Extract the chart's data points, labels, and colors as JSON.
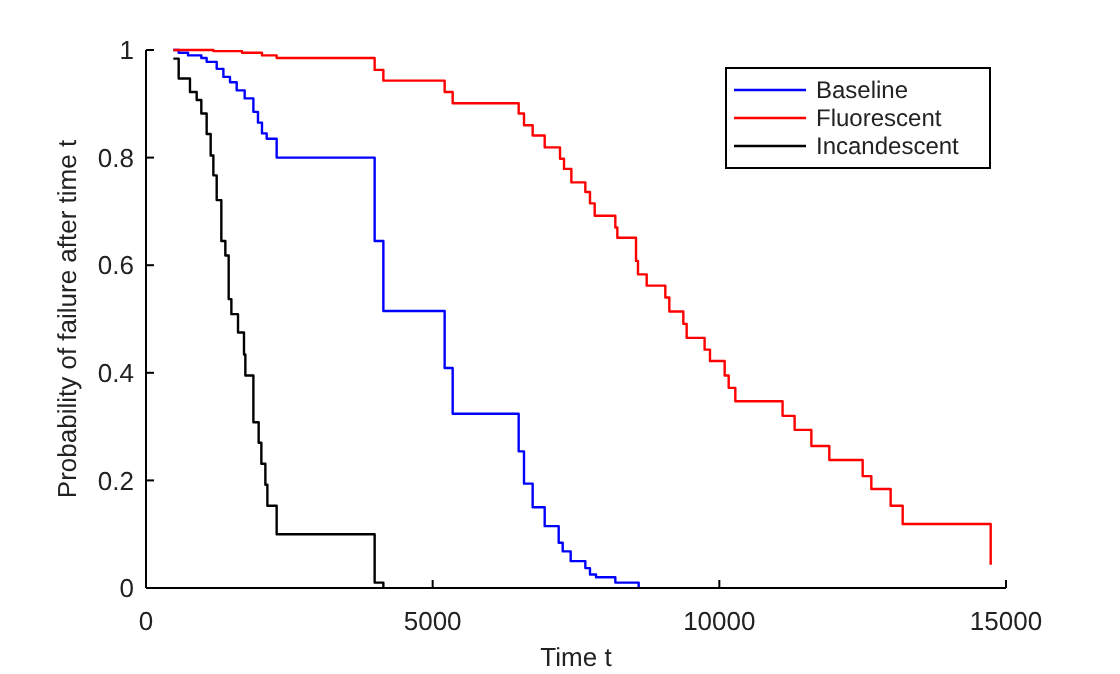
{
  "chart_data": {
    "type": "step",
    "xlabel": "Time t",
    "ylabel": "Probability of failure after time t",
    "xlim": [
      0,
      15000
    ],
    "ylim": [
      0,
      1
    ],
    "xticks": [
      0,
      5000,
      10000,
      15000
    ],
    "yticks": [
      0,
      0.2,
      0.4,
      0.6,
      0.8,
      1
    ],
    "grid": false,
    "legend": "top right",
    "line_style": "solid",
    "marker": "none",
    "series": [
      {
        "name": "Baseline",
        "color": "#0000ff",
        "x": [
          477,
          570,
          733,
          965,
          1058,
          1233,
          1350,
          1465,
          1582,
          1721,
          1873,
          1953,
          2023,
          2105,
          2279,
          3988,
          4140,
          5209,
          5349,
          6500,
          6593,
          6744,
          6954,
          7198,
          7268,
          7407,
          7663,
          7744,
          7849,
          8186,
          8593
        ],
        "values": [
          1,
          0.995,
          0.99,
          0.985,
          0.978,
          0.965,
          0.95,
          0.94,
          0.925,
          0.91,
          0.885,
          0.865,
          0.845,
          0.835,
          0.8,
          0.645,
          0.515,
          0.409,
          0.324,
          0.254,
          0.194,
          0.15,
          0.115,
          0.084,
          0.068,
          0.05,
          0.037,
          0.025,
          0.02,
          0.01,
          0
        ]
      },
      {
        "name": "Fluorescent",
        "color": "#ff0000",
        "x": [
          477,
          1175,
          1675,
          2023,
          2279,
          3988,
          4140,
          5209,
          5349,
          6500,
          6593,
          6744,
          6954,
          7221,
          7291,
          7419,
          7663,
          7744,
          7826,
          8186,
          8221,
          8547,
          8581,
          8733,
          9058,
          9128,
          9372,
          9430,
          9743,
          9837,
          10093,
          10163,
          10279,
          11103,
          11313,
          11605,
          11918,
          12500,
          12651,
          12988,
          13198,
          14733
        ],
        "values": [
          1,
          0.998,
          0.995,
          0.99,
          0.985,
          0.963,
          0.943,
          0.922,
          0.901,
          0.882,
          0.86,
          0.841,
          0.819,
          0.798,
          0.779,
          0.754,
          0.736,
          0.715,
          0.692,
          0.67,
          0.651,
          0.608,
          0.583,
          0.562,
          0.54,
          0.514,
          0.491,
          0.465,
          0.443,
          0.422,
          0.395,
          0.372,
          0.347,
          0.32,
          0.294,
          0.264,
          0.238,
          0.208,
          0.184,
          0.153,
          0.119,
          0.043
        ]
      },
      {
        "name": "Incandescent",
        "color": "#000000",
        "x": [
          477,
          570,
          767,
          884,
          965,
          1058,
          1128,
          1175,
          1233,
          1314,
          1384,
          1442,
          1489,
          1605,
          1709,
          1733,
          1873,
          1965,
          2012,
          2082,
          2117,
          2279,
          3988,
          4140
        ],
        "values": [
          0.984,
          0.947,
          0.922,
          0.907,
          0.882,
          0.844,
          0.804,
          0.767,
          0.721,
          0.645,
          0.618,
          0.537,
          0.509,
          0.475,
          0.434,
          0.395,
          0.308,
          0.27,
          0.231,
          0.192,
          0.153,
          0.1,
          0.01,
          0
        ]
      }
    ]
  }
}
